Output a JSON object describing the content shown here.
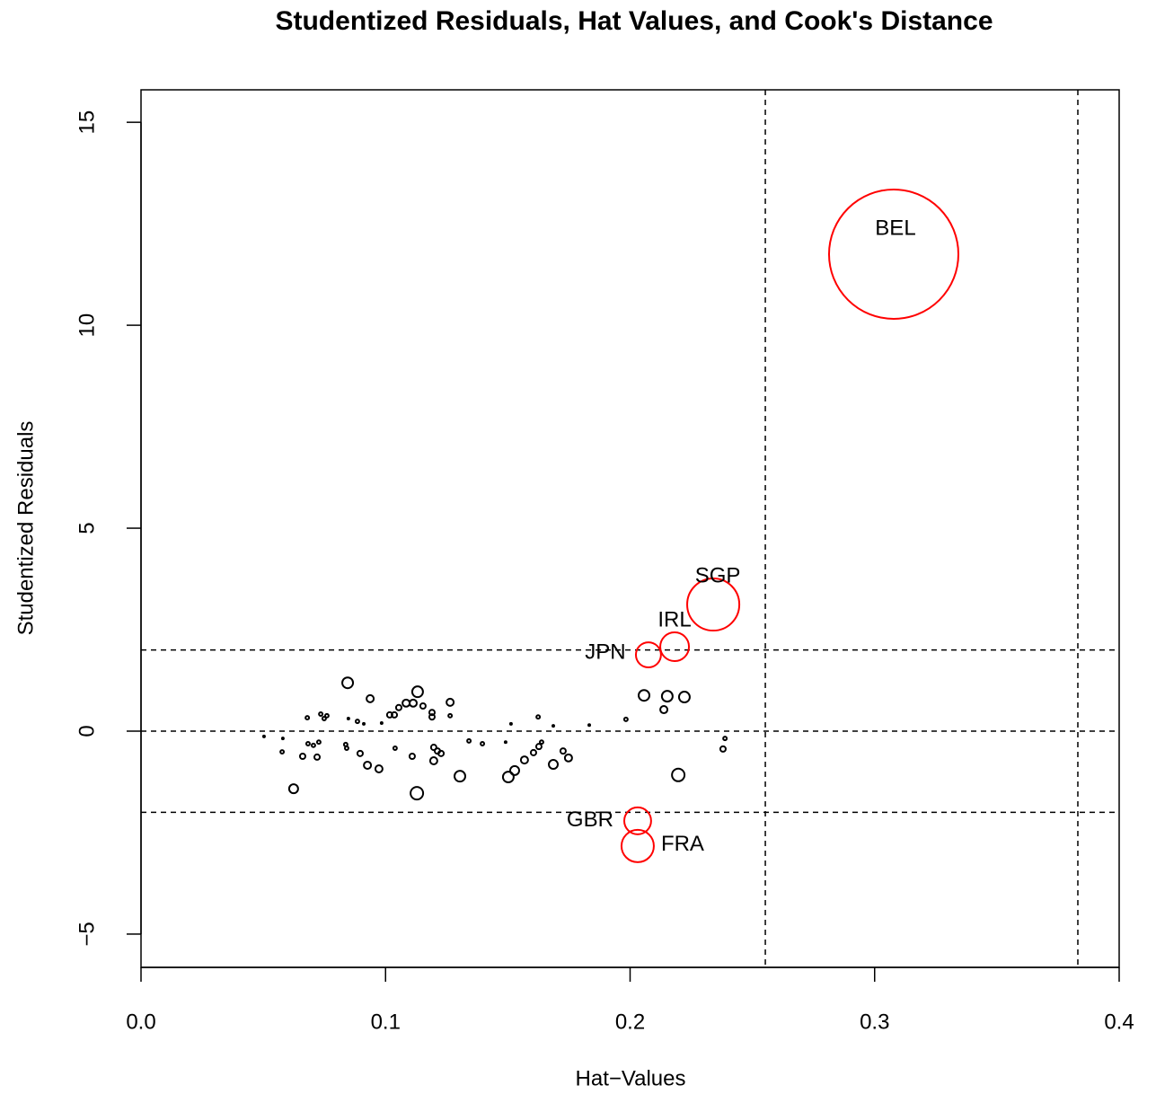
{
  "chart_data": {
    "type": "scatter",
    "title": "Studentized Residuals, Hat Values, and Cook's Distance",
    "x_label": "Hat−Values",
    "y_label": "Studentized Residuals",
    "xlim": [
      0,
      0.4
    ],
    "ylim": [
      -5.82,
      15.8
    ],
    "xticks": [
      {
        "value": 0,
        "label": "0.0"
      },
      0.1,
      0.2,
      0.3,
      0.4
    ],
    "yticks": [
      {
        "value": -5,
        "label": "−5"
      },
      0,
      5,
      10,
      15
    ],
    "hlines": [
      -2,
      0,
      2
    ],
    "vlines": [
      0.2553,
      0.3831
    ],
    "series": [
      {
        "color": "#000000",
        "x": [
          0.0845,
          0.1131,
          0.0937,
          0.1084,
          0.1113,
          0.1264,
          0.1153,
          0.1054,
          0.1017,
          0.1036,
          0.119,
          0.119,
          0.1264,
          0.2057,
          0.2152,
          0.2222,
          0.2138,
          0.1983,
          0.1624,
          0.2197,
          0.1304,
          0.1502,
          0.1528,
          0.1128,
          0.0624,
          0.0973,
          0.0926,
          0.1686,
          0.1568,
          0.1605,
          0.1627,
          0.1638,
          0.1726,
          0.1748,
          0.1197,
          0.1197,
          0.1212,
          0.1227,
          0.1109,
          0.0896,
          0.072,
          0.0661,
          0.0683,
          0.0705,
          0.0727,
          0.0577,
          0.238,
          0.2388,
          0.068,
          0.0735,
          0.0749,
          0.076,
          0.0848,
          0.0885,
          0.0911,
          0.0503,
          0.058,
          0.1341,
          0.1396,
          0.1513,
          0.1686,
          0.1833,
          0.1491,
          0.0837,
          0.0841,
          0.1039,
          0.0984
        ],
        "values": [
          1.19,
          0.97,
          0.8,
          0.69,
          0.69,
          0.71,
          0.62,
          0.58,
          0.4,
          0.4,
          0.46,
          0.35,
          0.38,
          0.88,
          0.86,
          0.84,
          0.53,
          0.29,
          0.35,
          -1.08,
          -1.11,
          -1.13,
          -0.97,
          -1.53,
          -1.42,
          -0.93,
          -0.84,
          -0.82,
          -0.71,
          -0.53,
          -0.38,
          -0.27,
          -0.49,
          -0.66,
          -0.73,
          -0.4,
          -0.49,
          -0.55,
          -0.62,
          -0.55,
          -0.64,
          -0.62,
          -0.31,
          -0.35,
          -0.27,
          -0.51,
          -0.44,
          -0.18,
          0.33,
          0.42,
          0.31,
          0.38,
          0.31,
          0.24,
          0.18,
          -0.13,
          -0.18,
          -0.24,
          -0.31,
          0.18,
          0.13,
          0.15,
          -0.27,
          -0.33,
          -0.42,
          -0.42,
          0.2
        ],
        "sizes": [
          0.0111,
          0.0111,
          0.0049,
          0.0049,
          0.0049,
          0.0049,
          0.0028,
          0.0028,
          0.0028,
          0.0028,
          0.0028,
          0.0028,
          0.0012,
          0.0111,
          0.0111,
          0.0111,
          0.0049,
          0.0012,
          0.0012,
          0.0151,
          0.0111,
          0.0111,
          0.0077,
          0.0151,
          0.0077,
          0.0049,
          0.0049,
          0.0077,
          0.0049,
          0.0028,
          0.0028,
          0.0012,
          0.0028,
          0.0049,
          0.0049,
          0.0028,
          0.0028,
          0.0028,
          0.0028,
          0.0028,
          0.0028,
          0.0028,
          0.0012,
          0.0012,
          0.0012,
          0.0012,
          0.0028,
          0.0012,
          0.0012,
          0.0012,
          0.0012,
          0.0012,
          0.0003,
          0.0012,
          0.0003,
          0.0003,
          0.0003,
          0.0012,
          0.0012,
          0.0003,
          0.0003,
          0.0003,
          0.0003,
          0.0012,
          0.0012,
          0.0012,
          0.0003
        ]
      },
      {
        "color": "#ff0000",
        "labels": [
          "BEL",
          "SGP",
          "IRL",
          "JPN",
          "GBR",
          "FRA"
        ],
        "x": [
          0.3078,
          0.234,
          0.2182,
          0.2075,
          0.2031,
          0.2031
        ],
        "values": [
          11.75,
          3.12,
          2.08,
          1.88,
          -2.21,
          -2.83
        ],
        "sizes": [
          1.6,
          0.26,
          0.079,
          0.06,
          0.069,
          0.1
        ]
      }
    ]
  }
}
